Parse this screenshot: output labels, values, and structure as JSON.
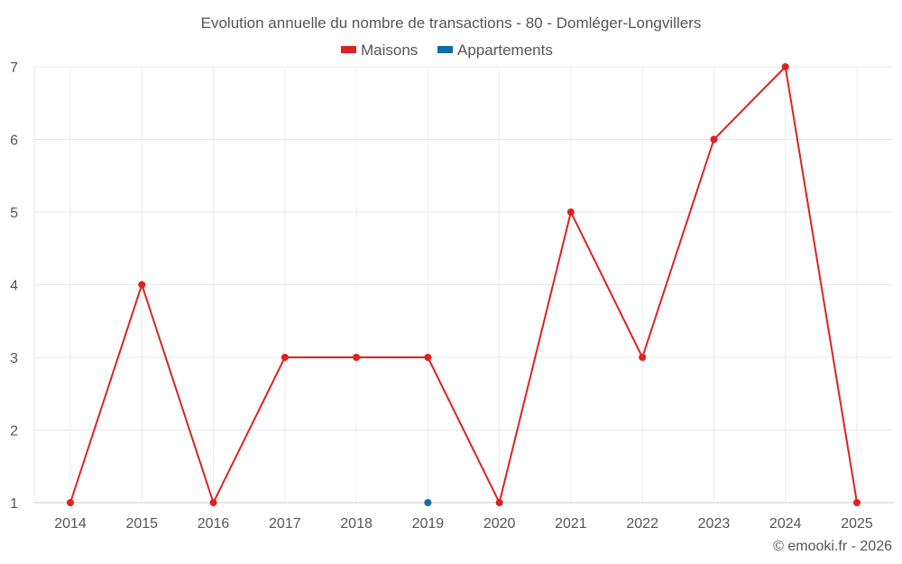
{
  "chart_data": {
    "type": "line",
    "title": "Evolution annuelle du nombre de transactions - 80 - Domléger-Longvillers",
    "categories": [
      "2014",
      "2015",
      "2016",
      "2017",
      "2018",
      "2019",
      "2020",
      "2021",
      "2022",
      "2023",
      "2024",
      "2025"
    ],
    "series": [
      {
        "name": "Maisons",
        "color": "#dd2222",
        "values": [
          1,
          4,
          1,
          3,
          3,
          3,
          1,
          5,
          3,
          6,
          7,
          1
        ]
      },
      {
        "name": "Appartements",
        "color": "#0a6ea8",
        "values": [
          null,
          null,
          null,
          null,
          null,
          1,
          null,
          null,
          null,
          null,
          null,
          null
        ]
      }
    ],
    "yticks": [
      "1",
      "2",
      "3",
      "4",
      "5",
      "6",
      "7"
    ],
    "ylim": [
      1,
      7
    ],
    "grid": true,
    "legend": "top-center",
    "xlabel": "",
    "ylabel": ""
  },
  "credit": "© emooki.fr - 2026"
}
